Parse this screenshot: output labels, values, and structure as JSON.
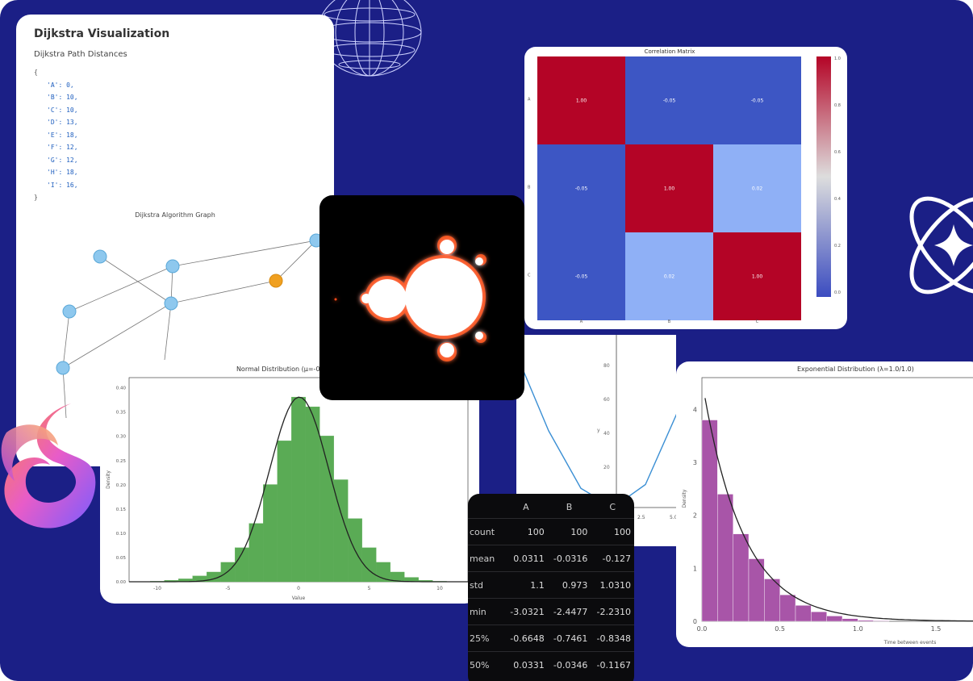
{
  "dijkstra": {
    "title": "Dijkstra Visualization",
    "subtitle": "Dijkstra Path Distances",
    "open_brace": "{",
    "close_brace": "}",
    "entries": [
      "'A': 0,",
      "'B': 10,",
      "'C': 10,",
      "'D': 13,",
      "'E': 18,",
      "'F': 12,",
      "'G': 12,",
      "'H': 18,",
      "'I': 16,"
    ],
    "graph_title": "Dijkstra Algorithm Graph"
  },
  "correlation": {
    "title": "Correlation Matrix",
    "cells": [
      [
        "1.00",
        "-0.05",
        "-0.05"
      ],
      [
        "-0.05",
        "1.00",
        "0.02"
      ],
      [
        "-0.05",
        "0.02",
        "1.00"
      ]
    ],
    "colors": [
      "#b40426",
      "#3b4cc0"
    ],
    "colorbar_ticks": [
      "1.0",
      "0.8",
      "0.6",
      "0.4",
      "0.2",
      "0.0"
    ],
    "x_labels": [
      "A",
      "B",
      "C"
    ],
    "y_labels": [
      "A",
      "B",
      "C"
    ]
  },
  "normal_chart": {
    "title": "Normal Distribution (μ=-0.003, σ=1.0)",
    "xlabel": "Value",
    "ylabel": "Density",
    "color": "#5aab55",
    "y_ticks": [
      "0.00",
      "0.05",
      "0.10",
      "0.15",
      "0.20",
      "0.25",
      "0.30",
      "0.35",
      "0.40"
    ],
    "x_ticks": [
      "-10",
      "-5",
      "0",
      "5",
      "10"
    ]
  },
  "expo_chart": {
    "title": "Exponential Distribution (λ=1.0/1.0)",
    "xlabel": "Time between events",
    "ylabel": "Density",
    "color": "#a855a8",
    "y_ticks": [
      "0",
      "1",
      "2",
      "3",
      "4"
    ],
    "x_ticks": [
      "0.0",
      "0.5",
      "1.0",
      "1.5"
    ]
  },
  "line_chart": {
    "ylabel": "y",
    "y_ticks": [
      "80",
      "60",
      "40",
      "20",
      "0"
    ],
    "x_ticks": [
      "2.5",
      "5.0"
    ],
    "color": "#3b8fd4"
  },
  "dataframe": {
    "columns": [
      "",
      "A",
      "B",
      "C"
    ],
    "rows": [
      [
        "count",
        "100",
        "100",
        "100"
      ],
      [
        "mean",
        "0.0311",
        "-0.0316",
        "-0.127"
      ],
      [
        "std",
        "1.1",
        "0.973",
        "1.0310"
      ],
      [
        "min",
        "-3.0321",
        "-2.4477",
        "-2.2310"
      ],
      [
        "25%",
        "-0.6648",
        "-0.7461",
        "-0.8348"
      ],
      [
        "50%",
        "0.0331",
        "-0.0346",
        "-0.1167"
      ]
    ]
  },
  "chart_data": [
    {
      "type": "heatmap",
      "title": "Correlation Matrix",
      "x": [
        "A",
        "B",
        "C"
      ],
      "y": [
        "A",
        "B",
        "C"
      ],
      "values": [
        [
          1.0,
          -0.05,
          -0.05
        ],
        [
          -0.05,
          1.0,
          0.02
        ],
        [
          -0.05,
          0.02,
          1.0
        ]
      ]
    },
    {
      "type": "bar",
      "title": "Normal Distribution (μ=-0.003, σ=1.0)",
      "xlabel": "Value",
      "ylabel": "Density",
      "x": [
        -10,
        -9,
        -8,
        -7,
        -6,
        -5,
        -4,
        -3,
        -2,
        -1,
        0,
        1,
        2,
        3,
        4,
        5,
        6,
        7,
        8,
        9,
        10
      ],
      "values": [
        0.001,
        0.003,
        0.006,
        0.012,
        0.02,
        0.04,
        0.07,
        0.12,
        0.2,
        0.29,
        0.38,
        0.36,
        0.3,
        0.21,
        0.13,
        0.07,
        0.04,
        0.02,
        0.009,
        0.003,
        0.001
      ],
      "ylim": [
        0,
        0.42
      ],
      "xlim": [
        -12,
        12
      ]
    },
    {
      "type": "bar",
      "title": "Exponential Distribution (λ=1.0/1.0)",
      "xlabel": "Time between events",
      "ylabel": "Density",
      "x": [
        0.05,
        0.15,
        0.25,
        0.35,
        0.45,
        0.55,
        0.65,
        0.75,
        0.85,
        0.95,
        1.05,
        1.15
      ],
      "values": [
        3.8,
        2.4,
        1.65,
        1.18,
        0.8,
        0.5,
        0.3,
        0.18,
        0.1,
        0.05,
        0.02,
        0.01
      ],
      "ylim": [
        0,
        4.6
      ],
      "xlim": [
        0,
        1.8
      ]
    },
    {
      "type": "line",
      "ylabel": "y",
      "x": [
        0,
        1,
        2,
        3,
        4,
        5
      ],
      "values": [
        80,
        40,
        10,
        0,
        12,
        50
      ]
    }
  ]
}
